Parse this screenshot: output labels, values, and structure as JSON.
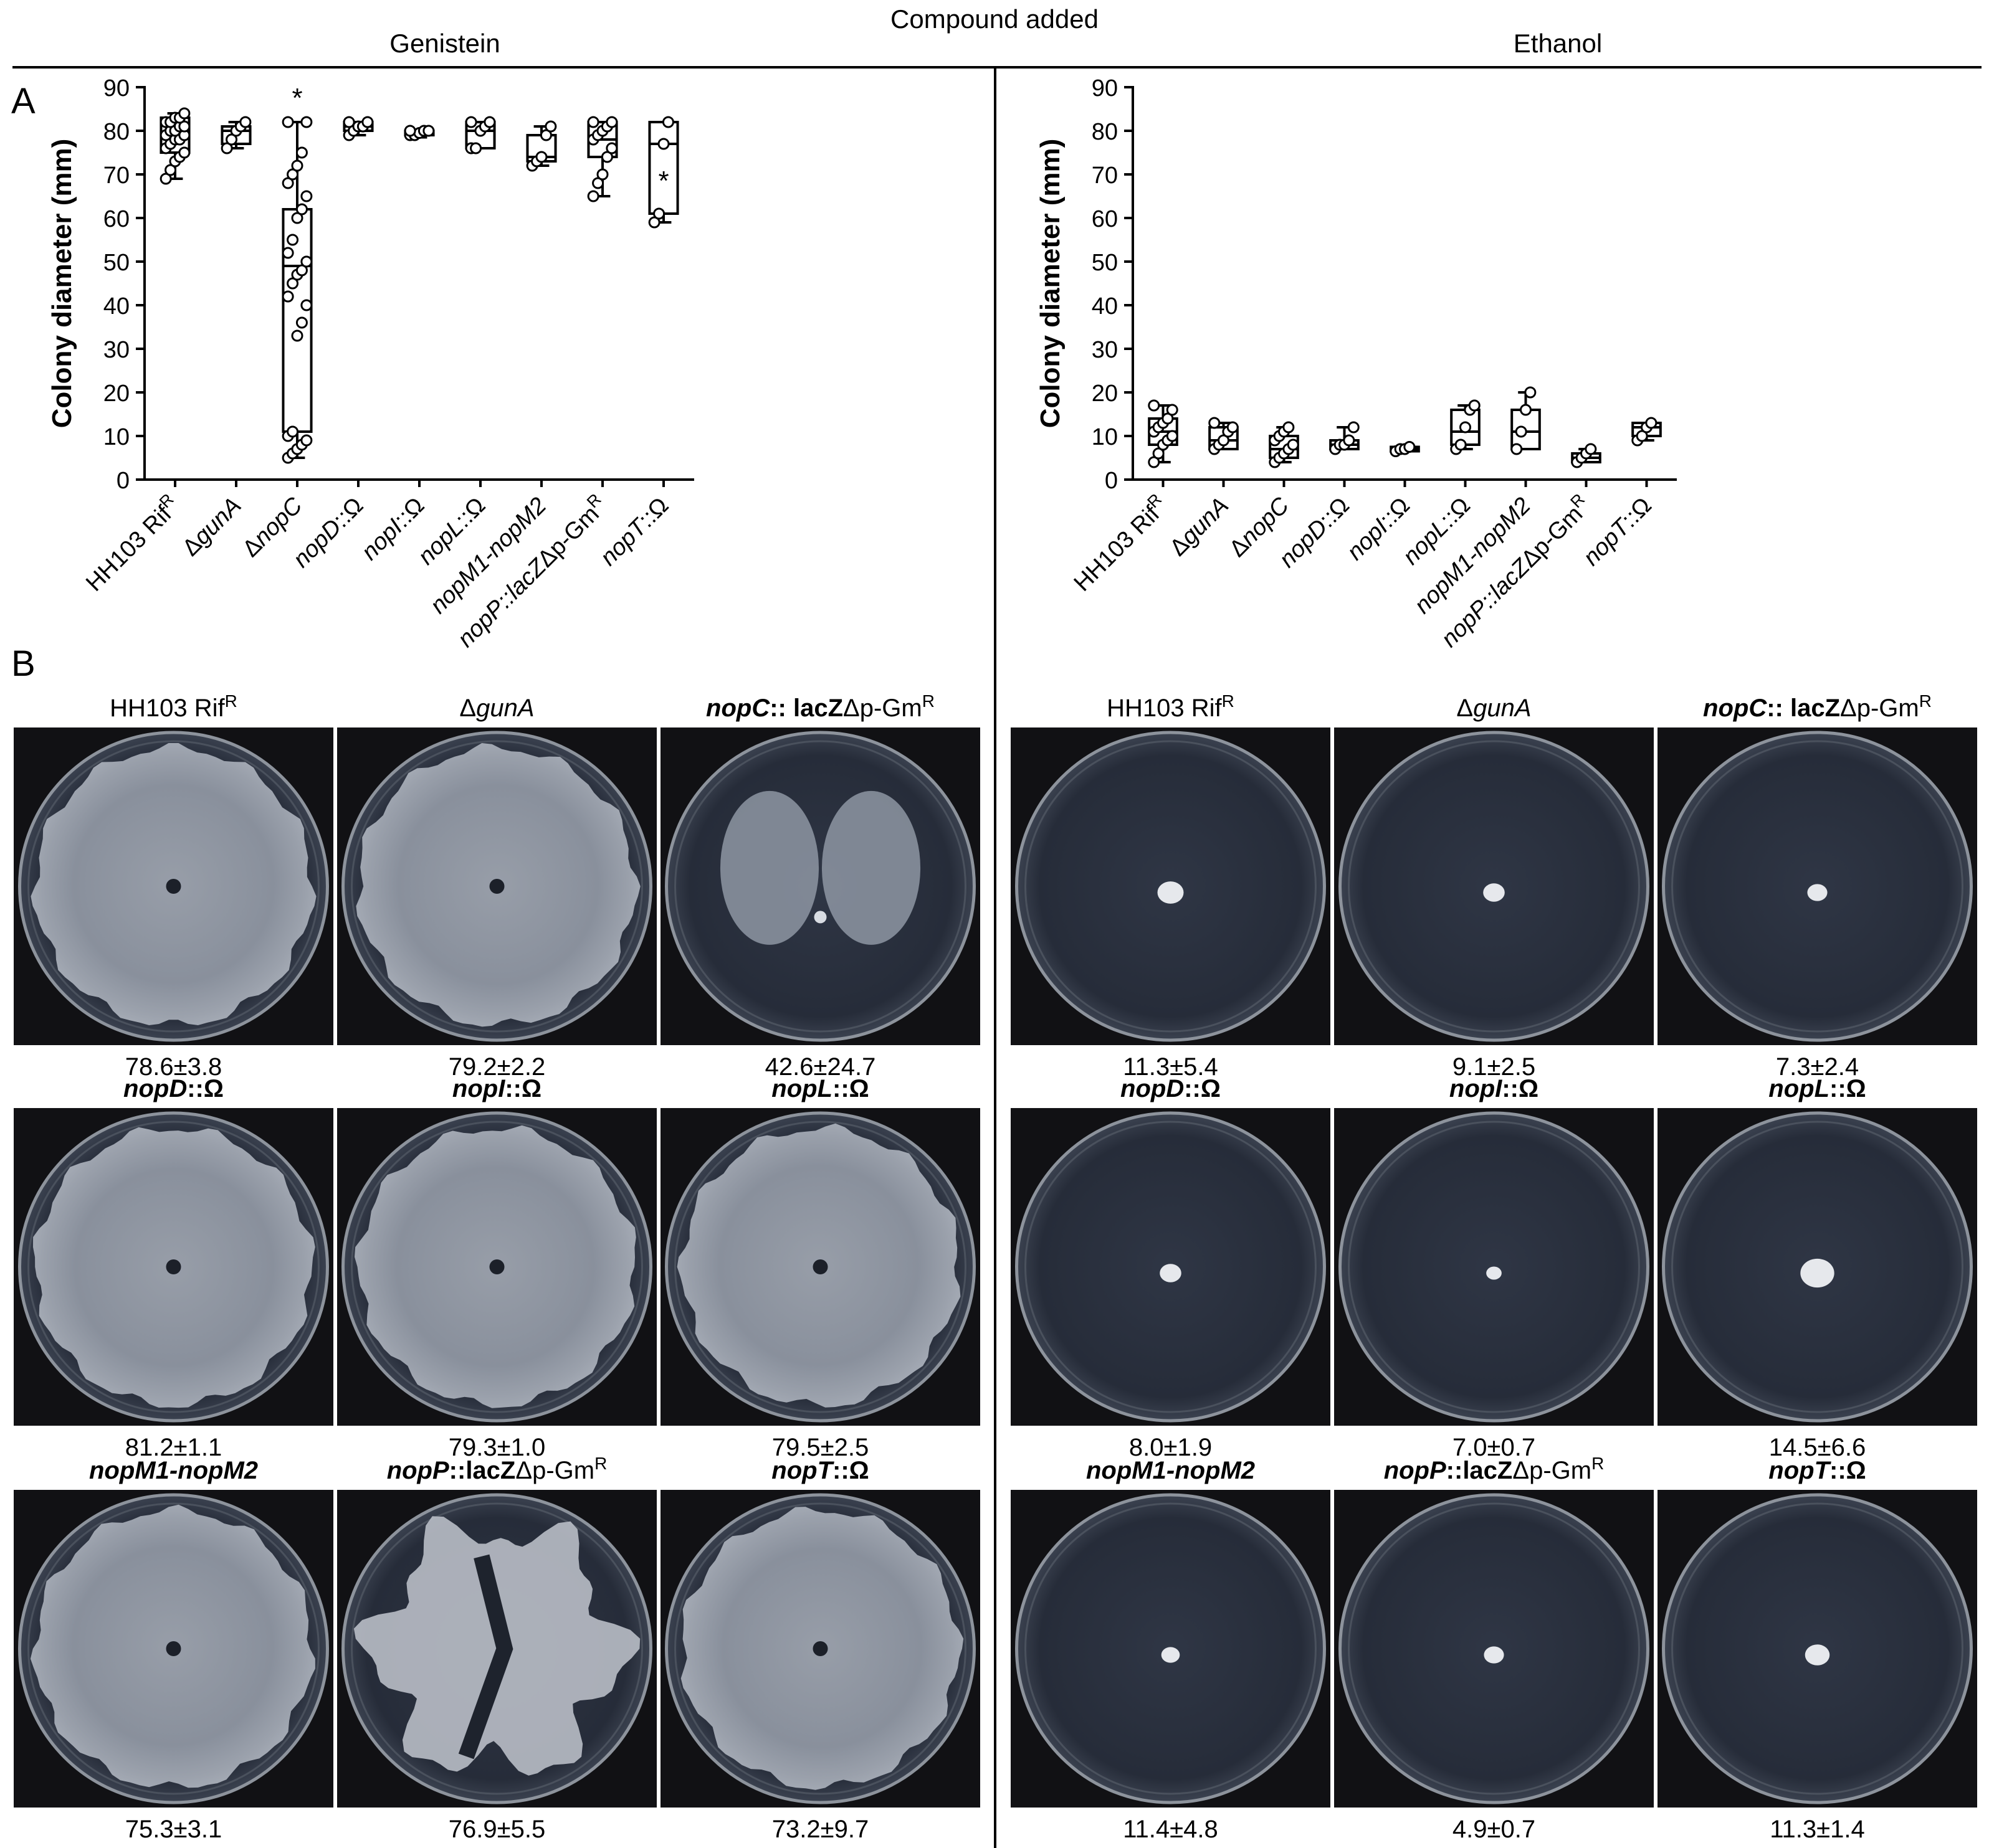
{
  "header": {
    "title": "Compound added",
    "left_condition": "Genistein",
    "right_condition": "Ethanol"
  },
  "panel_labels": {
    "a": "A",
    "b": "B"
  },
  "strain_tick_labels": [
    [
      "HH103 Rif",
      "",
      "R",
      ""
    ],
    [
      "Δ",
      "gunA",
      "",
      ""
    ],
    [
      "Δ",
      "nopC",
      "",
      ""
    ],
    [
      "",
      "nopD",
      "",
      "::Ω"
    ],
    [
      "",
      "nopI",
      "",
      "::Ω"
    ],
    [
      "",
      "nopL",
      "",
      "::Ω"
    ],
    [
      "",
      "nopM1-nopM2",
      "",
      ""
    ],
    [
      "",
      "nopP::lacZ",
      "",
      "Δp-Gm"
    ],
    [
      "",
      "nopT",
      "",
      "::Ω"
    ]
  ],
  "strain_tick_sup": [
    "",
    "",
    "",
    "",
    "",
    "",
    "",
    "R",
    ""
  ],
  "chart_data": [
    {
      "type": "box",
      "panel": "A",
      "title": "Genistein",
      "ylabel": "Colony diameter (mm)",
      "ylim": [
        0,
        90
      ],
      "yticks": [
        0,
        10,
        20,
        30,
        40,
        50,
        60,
        70,
        80,
        90
      ],
      "categories": [
        "HH103 RifR",
        "ΔgunA",
        "ΔnopC",
        "nopD::Ω",
        "nopI::Ω",
        "nopL::Ω",
        "nopM1-nopM2",
        "nopP::lacZΔp-GmR",
        "nopT::Ω"
      ],
      "boxes": [
        {
          "min": 69,
          "q1": 75,
          "median": 79,
          "q3": 83,
          "max": 84,
          "points": [
            69,
            71,
            73,
            74,
            75,
            76,
            77,
            78,
            78,
            79,
            79,
            80,
            80,
            81,
            81,
            82,
            82,
            83,
            83,
            84
          ]
        },
        {
          "min": 76,
          "q1": 77,
          "median": 80,
          "q3": 81,
          "max": 82,
          "points": [
            76,
            78,
            80,
            81,
            82
          ]
        },
        {
          "min": 5,
          "q1": 11,
          "median": 49,
          "q3": 62,
          "max": 82,
          "points": [
            5,
            6,
            7,
            8,
            9,
            10,
            11,
            33,
            36,
            40,
            42,
            45,
            47,
            48,
            50,
            52,
            55,
            60,
            62,
            65,
            68,
            70,
            72,
            75,
            82,
            82
          ]
        },
        {
          "min": 79,
          "q1": 80,
          "median": 81,
          "q3": 82,
          "max": 82,
          "points": [
            79,
            80,
            81,
            81,
            82,
            82
          ]
        },
        {
          "min": 78.5,
          "q1": 79,
          "median": 79.5,
          "q3": 80,
          "max": 80,
          "points": [
            79,
            79,
            79.5,
            80,
            80,
            80
          ]
        },
        {
          "min": 76,
          "q1": 76,
          "median": 80,
          "q3": 82,
          "max": 82,
          "points": [
            76,
            76,
            80,
            81,
            82,
            82
          ]
        },
        {
          "min": 72,
          "q1": 73,
          "median": 74,
          "q3": 79,
          "max": 81,
          "points": [
            72,
            73,
            74,
            79,
            81
          ]
        },
        {
          "min": 65,
          "q1": 74,
          "median": 78,
          "q3": 82,
          "max": 82,
          "points": [
            65,
            68,
            70,
            74,
            76,
            78,
            79,
            80,
            81,
            82,
            82
          ]
        },
        {
          "min": 59,
          "q1": 61,
          "median": 77,
          "q3": 82,
          "max": 82,
          "points": [
            59,
            61,
            77,
            82
          ]
        }
      ],
      "significance": [
        {
          "category": "ΔnopC",
          "label": "*"
        },
        {
          "category": "nopT::Ω",
          "label": "*"
        }
      ]
    },
    {
      "type": "box",
      "panel": "A",
      "title": "Ethanol",
      "ylabel": "Colony diameter (mm)",
      "ylim": [
        0,
        90
      ],
      "yticks": [
        0,
        10,
        20,
        30,
        40,
        50,
        60,
        70,
        80,
        90
      ],
      "categories": [
        "HH103 RifR",
        "ΔgunA",
        "ΔnopC",
        "nopD::Ω",
        "nopI::Ω",
        "nopL::Ω",
        "nopM1-nopM2",
        "nopP::lacZΔp-GmR",
        "nopT::Ω"
      ],
      "boxes": [
        {
          "min": 4,
          "q1": 8,
          "median": 11,
          "q3": 14,
          "max": 17,
          "points": [
            4,
            6,
            8,
            9,
            10,
            11,
            12,
            13,
            14,
            16,
            17
          ]
        },
        {
          "min": 7,
          "q1": 7,
          "median": 9,
          "q3": 12,
          "max": 13,
          "points": [
            7,
            8,
            9,
            11,
            12,
            13
          ]
        },
        {
          "min": 4,
          "q1": 5,
          "median": 7,
          "q3": 10,
          "max": 12,
          "points": [
            4,
            5,
            6,
            7,
            8,
            9,
            10,
            11,
            12
          ]
        },
        {
          "min": 7,
          "q1": 7,
          "median": 8,
          "q3": 9,
          "max": 12,
          "points": [
            7,
            8,
            8,
            9,
            12
          ]
        },
        {
          "min": 6.5,
          "q1": 6.5,
          "median": 7,
          "q3": 7.5,
          "max": 7.5,
          "points": [
            6.5,
            7,
            7,
            7.5
          ]
        },
        {
          "min": 7,
          "q1": 8,
          "median": 11,
          "q3": 16,
          "max": 17,
          "points": [
            7,
            8,
            12,
            16,
            17
          ]
        },
        {
          "min": 7,
          "q1": 7,
          "median": 11,
          "q3": 16,
          "max": 20,
          "points": [
            7,
            11,
            16,
            20
          ]
        },
        {
          "min": 4,
          "q1": 4,
          "median": 5,
          "q3": 6,
          "max": 7,
          "points": [
            4,
            5,
            6,
            7
          ]
        },
        {
          "min": 9,
          "q1": 10,
          "median": 12,
          "q3": 13,
          "max": 13,
          "points": [
            9,
            10,
            12,
            13
          ]
        }
      ]
    }
  ],
  "panel_b": {
    "genistein": {
      "plates": [
        {
          "name": [
            "HH103 Rif",
            "",
            "R",
            ""
          ],
          "value": "78.6±3.8",
          "kind": "full"
        },
        {
          "name": [
            "Δ",
            "gunA",
            "",
            ""
          ],
          "value": "79.2±2.2",
          "kind": "full"
        },
        {
          "name": [
            "",
            "nopC",
            "",
            ":: lacZ"
          ],
          "name2": [
            "Δp-Gm",
            "R"
          ],
          "value": "42.6±24.7",
          "kind": "butterfly"
        },
        {
          "name": [
            "",
            "nopD",
            "",
            "::Ω"
          ],
          "value": "81.2±1.1",
          "kind": "full"
        },
        {
          "name": [
            "",
            "nopI",
            "",
            "::Ω"
          ],
          "value": "79.3±1.0",
          "kind": "full"
        },
        {
          "name": [
            "",
            "nopL",
            "",
            "::Ω"
          ],
          "value": "79.5±2.5",
          "kind": "full"
        },
        {
          "name": [
            "",
            "nopM1-nopM2",
            "",
            ""
          ],
          "value": "75.3±3.1",
          "kind": "full"
        },
        {
          "name": [
            "",
            "nopP",
            "",
            "::lacZ"
          ],
          "name2": [
            "Δp-Gm",
            "R"
          ],
          "value": "76.9±5.5",
          "kind": "lobed"
        },
        {
          "name": [
            "",
            "nopT",
            "",
            "::Ω"
          ],
          "value": "73.2±9.7",
          "kind": "full"
        }
      ]
    },
    "ethanol": {
      "plates": [
        {
          "name": [
            "HH103 Rif",
            "",
            "R",
            ""
          ],
          "value": "11.3±5.4",
          "kind": "spot"
        },
        {
          "name": [
            "Δ",
            "gunA",
            "",
            ""
          ],
          "value": "9.1±2.5",
          "kind": "spot"
        },
        {
          "name": [
            "",
            "nopC",
            "",
            ":: lacZ"
          ],
          "name2": [
            "Δp-Gm",
            "R"
          ],
          "value": "7.3±2.4",
          "kind": "spot"
        },
        {
          "name": [
            "",
            "nopD",
            "",
            "::Ω"
          ],
          "value": "8.0±1.9",
          "kind": "spot"
        },
        {
          "name": [
            "",
            "nopI",
            "",
            "::Ω"
          ],
          "value": "7.0±0.7",
          "kind": "spot"
        },
        {
          "name": [
            "",
            "nopL",
            "",
            "::Ω"
          ],
          "value": "14.5±6.6",
          "kind": "spot"
        },
        {
          "name": [
            "",
            "nopM1-nopM2",
            "",
            ""
          ],
          "value": "11.4±4.8",
          "kind": "spot"
        },
        {
          "name": [
            "",
            "nopP",
            "",
            "::lacZ"
          ],
          "name2": [
            "Δp-Gm",
            "R"
          ],
          "value": "4.9±0.7",
          "kind": "spot"
        },
        {
          "name": [
            "",
            "nopT",
            "",
            "::Ω"
          ],
          "value": "11.3±1.4",
          "kind": "spot"
        }
      ]
    }
  }
}
